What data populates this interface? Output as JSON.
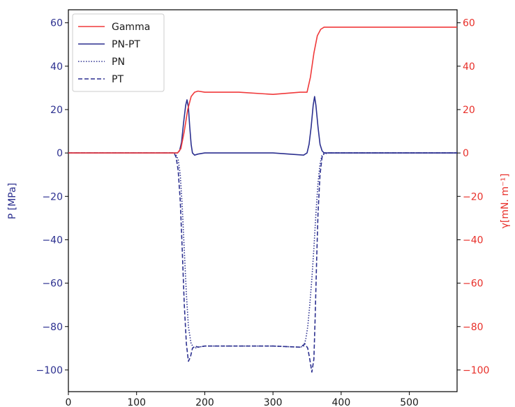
{
  "chart_data": {
    "type": "line",
    "xlabel": "",
    "xlim": [
      0,
      570
    ],
    "x_ticks": [
      "0",
      "100",
      "200",
      "300",
      "400",
      "500"
    ],
    "y_left": {
      "label": "P [MPa]",
      "lim": [
        -110,
        66
      ],
      "ticks": [
        "60",
        "40",
        "20",
        "0",
        "−20",
        "−40",
        "−60",
        "−80",
        "−100"
      ],
      "color": "#2b2f8f"
    },
    "y_right": {
      "label": "γ[mN. m⁻¹]",
      "lim": [
        -110,
        66
      ],
      "ticks": [
        "60",
        "40",
        "20",
        "0",
        "−20",
        "−40",
        "−60",
        "−80",
        "−100"
      ],
      "color": "#e8302a"
    },
    "legend_position": "top-left",
    "grid": false,
    "series": [
      {
        "name": "Gamma",
        "axis": "right",
        "color": "#f0393a",
        "style": "solid",
        "x": [
          0,
          160,
          165,
          170,
          175,
          180,
          185,
          190,
          200,
          250,
          300,
          340,
          350,
          355,
          360,
          365,
          370,
          375,
          380,
          570
        ],
        "y": [
          0,
          0,
          2,
          10,
          20,
          26,
          28,
          28.5,
          28,
          28,
          27,
          28,
          28,
          35,
          46,
          54,
          57,
          58,
          58,
          58
        ]
      },
      {
        "name": "PN-PT",
        "axis": "left",
        "color": "#2b2f8f",
        "style": "solid",
        "x": [
          0,
          160,
          163,
          166,
          169,
          172,
          174,
          176,
          178,
          180,
          182,
          185,
          190,
          200,
          250,
          300,
          345,
          350,
          353,
          356,
          359,
          361,
          363,
          366,
          369,
          372,
          375,
          380,
          570
        ],
        "y": [
          0,
          0,
          1,
          5,
          14,
          22,
          24.5,
          21,
          12,
          4,
          0,
          -1,
          -0.5,
          0,
          0,
          0,
          -1,
          0,
          4,
          12,
          22,
          26,
          22,
          12,
          4,
          1,
          0,
          0,
          0
        ]
      },
      {
        "name": "PN",
        "axis": "left",
        "color": "#2b2f8f",
        "style": "dotted",
        "x": [
          0,
          155,
          158,
          161,
          164,
          167,
          170,
          173,
          176,
          180,
          185,
          190,
          200,
          250,
          300,
          340,
          345,
          348,
          351,
          354,
          357,
          360,
          363,
          366,
          369,
          372,
          380,
          570
        ],
        "y": [
          0,
          0,
          -1,
          -3,
          -10,
          -25,
          -45,
          -65,
          -80,
          -88,
          -90,
          -89.5,
          -89,
          -89,
          -89,
          -89.5,
          -89,
          -86,
          -80,
          -70,
          -58,
          -44,
          -28,
          -14,
          -5,
          -1,
          0,
          0
        ]
      },
      {
        "name": "PT",
        "axis": "left",
        "color": "#2b2f8f",
        "style": "dashed",
        "x": [
          0,
          155,
          158,
          161,
          164,
          167,
          170,
          173,
          176,
          179,
          182,
          186,
          190,
          200,
          250,
          300,
          340,
          347,
          351,
          354,
          357,
          360,
          362,
          364,
          366,
          369,
          372,
          375,
          380,
          570
        ],
        "y": [
          0,
          0,
          -2,
          -8,
          -22,
          -45,
          -70,
          -88,
          -96,
          -94,
          -90,
          -89,
          -89.5,
          -89,
          -89,
          -89,
          -89.5,
          -88,
          -90,
          -95,
          -101,
          -95,
          -75,
          -50,
          -28,
          -10,
          -2,
          0,
          0,
          0
        ]
      }
    ]
  }
}
